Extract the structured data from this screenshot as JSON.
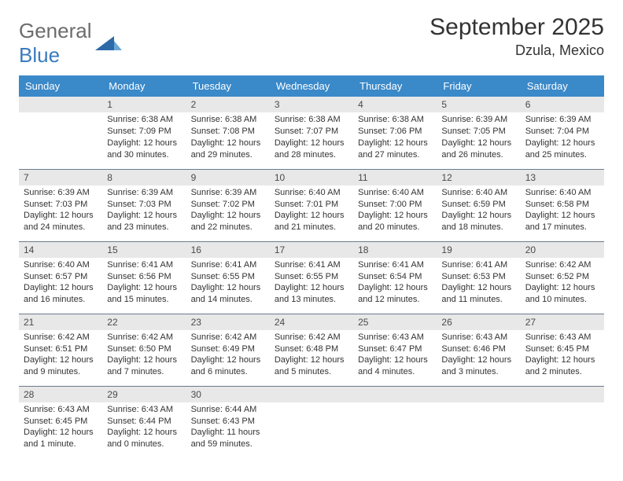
{
  "brand": {
    "part1": "General",
    "part2": "Blue"
  },
  "title": "September 2025",
  "location": "Dzula, Mexico",
  "colors": {
    "header_bg": "#3a89c9",
    "header_text": "#ffffff",
    "daynum_bg": "#e8e8e8",
    "row_border": "#6a7a8a",
    "text": "#333333",
    "logo_gray": "#6c6c6c",
    "logo_blue": "#3a7bbf"
  },
  "daysOfWeek": [
    "Sunday",
    "Monday",
    "Tuesday",
    "Wednesday",
    "Thursday",
    "Friday",
    "Saturday"
  ],
  "weeks": [
    [
      {
        "num": "",
        "lines": []
      },
      {
        "num": "1",
        "lines": [
          "Sunrise: 6:38 AM",
          "Sunset: 7:09 PM",
          "Daylight: 12 hours and 30 minutes."
        ]
      },
      {
        "num": "2",
        "lines": [
          "Sunrise: 6:38 AM",
          "Sunset: 7:08 PM",
          "Daylight: 12 hours and 29 minutes."
        ]
      },
      {
        "num": "3",
        "lines": [
          "Sunrise: 6:38 AM",
          "Sunset: 7:07 PM",
          "Daylight: 12 hours and 28 minutes."
        ]
      },
      {
        "num": "4",
        "lines": [
          "Sunrise: 6:38 AM",
          "Sunset: 7:06 PM",
          "Daylight: 12 hours and 27 minutes."
        ]
      },
      {
        "num": "5",
        "lines": [
          "Sunrise: 6:39 AM",
          "Sunset: 7:05 PM",
          "Daylight: 12 hours and 26 minutes."
        ]
      },
      {
        "num": "6",
        "lines": [
          "Sunrise: 6:39 AM",
          "Sunset: 7:04 PM",
          "Daylight: 12 hours and 25 minutes."
        ]
      }
    ],
    [
      {
        "num": "7",
        "lines": [
          "Sunrise: 6:39 AM",
          "Sunset: 7:03 PM",
          "Daylight: 12 hours and 24 minutes."
        ]
      },
      {
        "num": "8",
        "lines": [
          "Sunrise: 6:39 AM",
          "Sunset: 7:03 PM",
          "Daylight: 12 hours and 23 minutes."
        ]
      },
      {
        "num": "9",
        "lines": [
          "Sunrise: 6:39 AM",
          "Sunset: 7:02 PM",
          "Daylight: 12 hours and 22 minutes."
        ]
      },
      {
        "num": "10",
        "lines": [
          "Sunrise: 6:40 AM",
          "Sunset: 7:01 PM",
          "Daylight: 12 hours and 21 minutes."
        ]
      },
      {
        "num": "11",
        "lines": [
          "Sunrise: 6:40 AM",
          "Sunset: 7:00 PM",
          "Daylight: 12 hours and 20 minutes."
        ]
      },
      {
        "num": "12",
        "lines": [
          "Sunrise: 6:40 AM",
          "Sunset: 6:59 PM",
          "Daylight: 12 hours and 18 minutes."
        ]
      },
      {
        "num": "13",
        "lines": [
          "Sunrise: 6:40 AM",
          "Sunset: 6:58 PM",
          "Daylight: 12 hours and 17 minutes."
        ]
      }
    ],
    [
      {
        "num": "14",
        "lines": [
          "Sunrise: 6:40 AM",
          "Sunset: 6:57 PM",
          "Daylight: 12 hours and 16 minutes."
        ]
      },
      {
        "num": "15",
        "lines": [
          "Sunrise: 6:41 AM",
          "Sunset: 6:56 PM",
          "Daylight: 12 hours and 15 minutes."
        ]
      },
      {
        "num": "16",
        "lines": [
          "Sunrise: 6:41 AM",
          "Sunset: 6:55 PM",
          "Daylight: 12 hours and 14 minutes."
        ]
      },
      {
        "num": "17",
        "lines": [
          "Sunrise: 6:41 AM",
          "Sunset: 6:55 PM",
          "Daylight: 12 hours and 13 minutes."
        ]
      },
      {
        "num": "18",
        "lines": [
          "Sunrise: 6:41 AM",
          "Sunset: 6:54 PM",
          "Daylight: 12 hours and 12 minutes."
        ]
      },
      {
        "num": "19",
        "lines": [
          "Sunrise: 6:41 AM",
          "Sunset: 6:53 PM",
          "Daylight: 12 hours and 11 minutes."
        ]
      },
      {
        "num": "20",
        "lines": [
          "Sunrise: 6:42 AM",
          "Sunset: 6:52 PM",
          "Daylight: 12 hours and 10 minutes."
        ]
      }
    ],
    [
      {
        "num": "21",
        "lines": [
          "Sunrise: 6:42 AM",
          "Sunset: 6:51 PM",
          "Daylight: 12 hours and 9 minutes."
        ]
      },
      {
        "num": "22",
        "lines": [
          "Sunrise: 6:42 AM",
          "Sunset: 6:50 PM",
          "Daylight: 12 hours and 7 minutes."
        ]
      },
      {
        "num": "23",
        "lines": [
          "Sunrise: 6:42 AM",
          "Sunset: 6:49 PM",
          "Daylight: 12 hours and 6 minutes."
        ]
      },
      {
        "num": "24",
        "lines": [
          "Sunrise: 6:42 AM",
          "Sunset: 6:48 PM",
          "Daylight: 12 hours and 5 minutes."
        ]
      },
      {
        "num": "25",
        "lines": [
          "Sunrise: 6:43 AM",
          "Sunset: 6:47 PM",
          "Daylight: 12 hours and 4 minutes."
        ]
      },
      {
        "num": "26",
        "lines": [
          "Sunrise: 6:43 AM",
          "Sunset: 6:46 PM",
          "Daylight: 12 hours and 3 minutes."
        ]
      },
      {
        "num": "27",
        "lines": [
          "Sunrise: 6:43 AM",
          "Sunset: 6:45 PM",
          "Daylight: 12 hours and 2 minutes."
        ]
      }
    ],
    [
      {
        "num": "28",
        "lines": [
          "Sunrise: 6:43 AM",
          "Sunset: 6:45 PM",
          "Daylight: 12 hours and 1 minute."
        ]
      },
      {
        "num": "29",
        "lines": [
          "Sunrise: 6:43 AM",
          "Sunset: 6:44 PM",
          "Daylight: 12 hours and 0 minutes."
        ]
      },
      {
        "num": "30",
        "lines": [
          "Sunrise: 6:44 AM",
          "Sunset: 6:43 PM",
          "Daylight: 11 hours and 59 minutes."
        ]
      },
      {
        "num": "",
        "lines": []
      },
      {
        "num": "",
        "lines": []
      },
      {
        "num": "",
        "lines": []
      },
      {
        "num": "",
        "lines": []
      }
    ]
  ]
}
